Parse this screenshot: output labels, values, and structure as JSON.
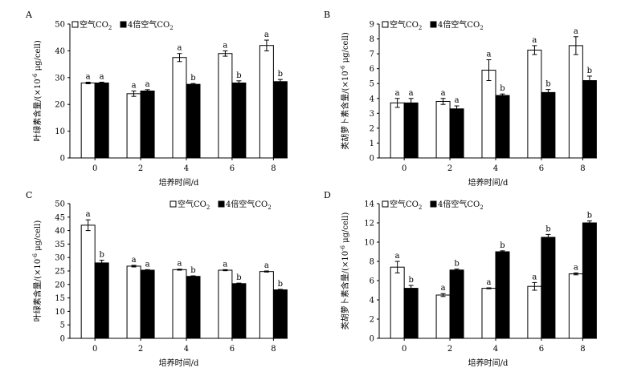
{
  "colors": {
    "air": "#ffffff",
    "co2": "#000000",
    "stroke": "#000000"
  },
  "legend": {
    "air": {
      "prefix": "空气CO",
      "sub": "2"
    },
    "co2": {
      "prefix": "4倍空气CO",
      "sub": "2"
    }
  },
  "chart_data": [
    {
      "id": "A",
      "type": "bar",
      "panel_letter": "A",
      "xlabel": "培养时间/d",
      "ylabel": {
        "pre": "叶绿素含量/(×10",
        "exp": "-6",
        "post": " μg/cell)"
      },
      "categories": [
        "0",
        "2",
        "4",
        "6",
        "8"
      ],
      "ylim": [
        0,
        50
      ],
      "yticks": [
        0,
        10,
        20,
        30,
        40,
        50
      ],
      "series": [
        {
          "name": "空气CO2",
          "values": [
            28.0,
            24.0,
            37.5,
            39.0,
            42.0
          ],
          "errors": [
            0.3,
            1.0,
            1.5,
            1.0,
            2.0
          ],
          "labels": [
            "a",
            "a",
            "a",
            "a",
            "a"
          ]
        },
        {
          "name": "4倍空气CO2",
          "values": [
            28.0,
            25.0,
            27.5,
            28.0,
            28.5
          ],
          "errors": [
            0.3,
            0.5,
            0.3,
            0.8,
            0.8
          ],
          "labels": [
            "a",
            "a",
            "b",
            "b",
            "b"
          ]
        }
      ]
    },
    {
      "id": "B",
      "type": "bar",
      "panel_letter": "B",
      "xlabel": "培养时间/d",
      "ylabel": {
        "pre": "类胡萝卜素含量/(×10",
        "exp": "-6",
        "post": " μg/cell)"
      },
      "categories": [
        "0",
        "2",
        "4",
        "6",
        "8"
      ],
      "ylim": [
        0,
        9
      ],
      "yticks": [
        0,
        1,
        2,
        3,
        4,
        5,
        6,
        7,
        8,
        9
      ],
      "series": [
        {
          "name": "空气CO2",
          "values": [
            3.7,
            3.8,
            5.9,
            7.25,
            7.55
          ],
          "errors": [
            0.3,
            0.2,
            0.7,
            0.3,
            0.6
          ],
          "labels": [
            "a",
            "a",
            "a",
            "a",
            "a"
          ]
        },
        {
          "name": "4倍空气CO2",
          "values": [
            3.7,
            3.3,
            4.2,
            4.4,
            5.2
          ],
          "errors": [
            0.3,
            0.2,
            0.1,
            0.2,
            0.3
          ],
          "labels": [
            "a",
            "a",
            "b",
            "b",
            "b"
          ]
        }
      ]
    },
    {
      "id": "C",
      "type": "bar",
      "panel_letter": "C",
      "xlabel": "培养时间/d",
      "ylabel": {
        "pre": "叶绿素含量/(×10",
        "exp": "-6",
        "post": " μg/cell)"
      },
      "categories": [
        "0",
        "2",
        "4",
        "6",
        "8"
      ],
      "ylim": [
        0,
        50
      ],
      "yticks": [
        0,
        5,
        10,
        15,
        20,
        25,
        30,
        35,
        40,
        45,
        50
      ],
      "series": [
        {
          "name": "空气CO2",
          "values": [
            42.0,
            26.8,
            25.5,
            25.3,
            24.8
          ],
          "errors": [
            2.0,
            0.3,
            0.2,
            0.2,
            0.2
          ],
          "labels": [
            "a",
            "a",
            "a",
            "a",
            "a"
          ]
        },
        {
          "name": "4倍空气CO2",
          "values": [
            28.0,
            25.3,
            23.0,
            20.3,
            18.0
          ],
          "errors": [
            1.0,
            0.2,
            0.2,
            0.2,
            0.2
          ],
          "labels": [
            "b",
            "a",
            "b",
            "b",
            "b"
          ]
        }
      ]
    },
    {
      "id": "D",
      "type": "bar",
      "panel_letter": "D",
      "xlabel": "培养时间/d",
      "ylabel": {
        "pre": "类胡萝卜素含量/(×10",
        "exp": "-6",
        "post": " μg/cell)"
      },
      "categories": [
        "0",
        "2",
        "4",
        "6",
        "8"
      ],
      "ylim": [
        0,
        14
      ],
      "yticks": [
        0,
        2,
        4,
        6,
        8,
        10,
        12,
        14
      ],
      "series": [
        {
          "name": "空气CO2",
          "values": [
            7.4,
            4.5,
            5.2,
            5.4,
            6.7
          ],
          "errors": [
            0.6,
            0.15,
            0.05,
            0.4,
            0.1
          ],
          "labels": [
            "a",
            "a",
            "a",
            "a",
            "a"
          ]
        },
        {
          "name": "4倍空气CO2",
          "values": [
            5.2,
            7.1,
            9.0,
            10.5,
            12.0
          ],
          "errors": [
            0.3,
            0.1,
            0.1,
            0.3,
            0.2
          ],
          "labels": [
            "b",
            "b",
            "b",
            "b",
            "b"
          ]
        }
      ]
    }
  ]
}
